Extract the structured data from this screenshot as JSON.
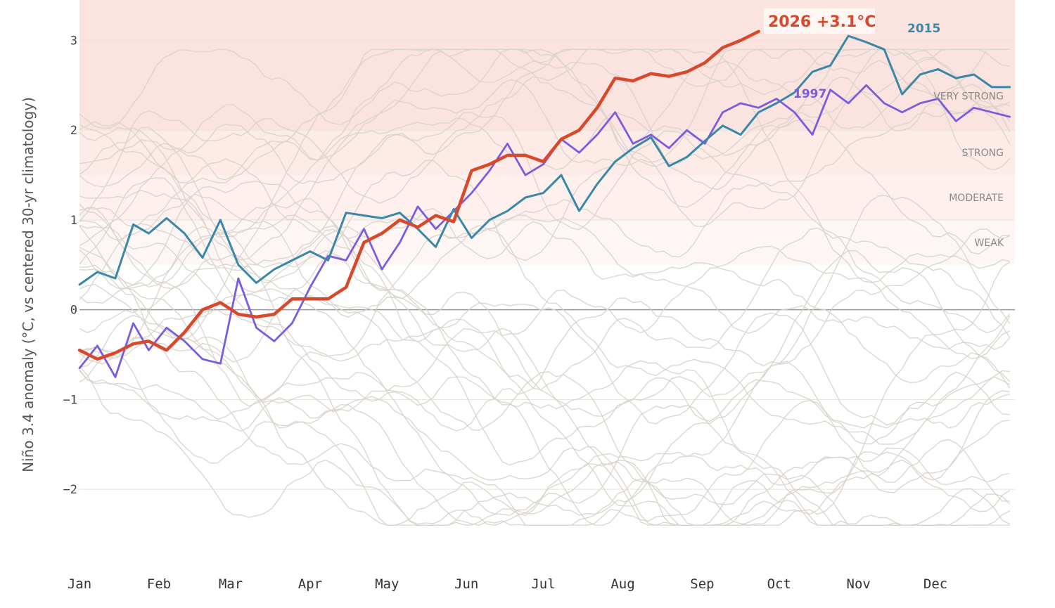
{
  "chart_data": {
    "type": "line",
    "title": "",
    "xlabel": "",
    "ylabel": "Niño 3.4 anomaly (°C, vs centered 30-yr climatology)",
    "x_ticks": [
      "Jan",
      "Feb",
      "Mar",
      "Apr",
      "May",
      "Jun",
      "Jul",
      "Aug",
      "Sep",
      "Oct",
      "Nov",
      "Dec"
    ],
    "xlim": [
      1,
      366
    ],
    "ylim": [
      -2.5,
      3.45
    ],
    "y_ticks": [
      -2,
      -1,
      0,
      1,
      2,
      3
    ],
    "grid": true,
    "intensity_bands": [
      {
        "label": "WEAK",
        "min": 0.5,
        "max": 1.0
      },
      {
        "label": "MODERATE",
        "min": 1.0,
        "max": 1.5
      },
      {
        "label": "STRONG",
        "min": 1.5,
        "max": 2.0
      },
      {
        "label": "VERY STRONG",
        "min": 2.0,
        "max": 3.45
      }
    ],
    "colors": {
      "current": "#d9482b",
      "y2015": "#3a87a8",
      "y1997": "#7b5ce0",
      "background_years": "#d8d3cb",
      "band_fill": "#fbe4df"
    },
    "current": {
      "name": "2026",
      "label": "+3.1°C",
      "last_value": 3.1,
      "x": [
        1,
        8,
        15,
        22,
        28,
        35,
        42,
        49,
        56,
        63,
        70,
        77,
        84,
        91,
        98,
        105,
        112,
        119,
        126,
        133,
        140,
        147,
        154,
        161,
        168,
        175,
        182,
        189,
        196,
        203,
        210,
        217,
        224,
        231,
        238,
        245,
        252,
        259,
        266
      ],
      "y": [
        -0.45,
        -0.55,
        -0.48,
        -0.38,
        -0.35,
        -0.45,
        -0.25,
        0.0,
        0.08,
        -0.05,
        -0.08,
        -0.05,
        0.12,
        0.12,
        0.12,
        0.25,
        0.75,
        0.85,
        1.0,
        0.92,
        1.05,
        0.98,
        1.55,
        1.62,
        1.72,
        1.72,
        1.65,
        1.9,
        2.0,
        2.25,
        2.58,
        2.55,
        2.63,
        2.6,
        2.65,
        2.75,
        2.92,
        3.0,
        3.1
      ]
    },
    "series": [
      {
        "name": "2015",
        "x": [
          1,
          8,
          15,
          22,
          28,
          35,
          42,
          49,
          56,
          63,
          70,
          77,
          84,
          91,
          98,
          105,
          112,
          119,
          126,
          133,
          140,
          147,
          154,
          161,
          168,
          175,
          182,
          189,
          196,
          203,
          210,
          217,
          224,
          231,
          238,
          245,
          252,
          259,
          266,
          273,
          280,
          287,
          294,
          301,
          308,
          315,
          322,
          329,
          336,
          343,
          350,
          357,
          364
        ],
        "y": [
          0.28,
          0.42,
          0.35,
          0.95,
          0.85,
          1.02,
          0.85,
          0.58,
          1.0,
          0.5,
          0.3,
          0.45,
          0.55,
          0.65,
          0.55,
          1.08,
          1.05,
          1.02,
          1.08,
          0.9,
          0.7,
          1.12,
          0.8,
          1.0,
          1.1,
          1.25,
          1.3,
          1.5,
          1.1,
          1.4,
          1.65,
          1.8,
          1.92,
          1.6,
          1.7,
          1.88,
          2.05,
          1.95,
          2.2,
          2.3,
          2.42,
          2.65,
          2.72,
          3.05,
          2.98,
          2.9,
          2.4,
          2.62,
          2.68,
          2.58,
          2.62,
          2.48,
          2.48
        ]
      },
      {
        "name": "1997",
        "x": [
          1,
          8,
          15,
          22,
          28,
          35,
          42,
          49,
          56,
          63,
          70,
          77,
          84,
          91,
          98,
          105,
          112,
          119,
          126,
          133,
          140,
          147,
          154,
          161,
          168,
          175,
          182,
          189,
          196,
          203,
          210,
          217,
          224,
          231,
          238,
          245,
          252,
          259,
          266,
          273,
          280,
          287,
          294,
          301,
          308,
          315,
          322,
          329,
          336,
          343,
          350,
          357,
          364
        ],
        "y": [
          -0.65,
          -0.4,
          -0.75,
          -0.15,
          -0.45,
          -0.2,
          -0.35,
          -0.55,
          -0.6,
          0.35,
          -0.2,
          -0.35,
          -0.15,
          0.25,
          0.6,
          0.55,
          0.9,
          0.45,
          0.75,
          1.15,
          0.9,
          1.1,
          1.3,
          1.55,
          1.85,
          1.5,
          1.62,
          1.9,
          1.75,
          1.95,
          2.2,
          1.85,
          1.95,
          1.8,
          2.0,
          1.85,
          2.2,
          2.3,
          2.25,
          2.35,
          2.2,
          1.95,
          2.45,
          2.3,
          2.5,
          2.3,
          2.2,
          2.3,
          2.35,
          2.1,
          2.25,
          2.2,
          2.15
        ]
      }
    ],
    "annotations": [
      {
        "text": "2015",
        "series": "2015"
      },
      {
        "text": "1997",
        "series": "1997"
      }
    ]
  }
}
